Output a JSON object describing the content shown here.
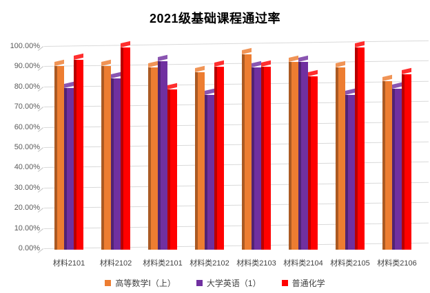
{
  "title": "2021级基础课程通过率",
  "chart_data": {
    "type": "bar",
    "style": "3d-clustered-column",
    "title": "2021级基础课程通过率",
    "categories": [
      "材料2101",
      "材料2102",
      "材料类2101",
      "材料类2102",
      "材料类2103",
      "材料类2104",
      "材料类2105",
      "材料类2106"
    ],
    "series": [
      {
        "name": "高等数学Ⅰ（上）",
        "color": "#ED7D31",
        "values": [
          90.9,
          90.9,
          90.0,
          87.9,
          96.7,
          92.9,
          90.0,
          83.3
        ]
      },
      {
        "name": "大学英语（1）",
        "color": "#7030A0",
        "values": [
          80.0,
          84.8,
          93.3,
          76.7,
          90.0,
          92.9,
          76.7,
          79.5
        ]
      },
      {
        "name": "普通化学",
        "color": "#FF0000",
        "values": [
          93.9,
          100.0,
          79.3,
          90.6,
          90.6,
          85.7,
          100.0,
          86.7
        ]
      }
    ],
    "xlabel": "",
    "ylabel": "",
    "ylim": [
      0,
      100
    ],
    "ytick_labels": [
      "0.00%",
      "10.00%",
      "20.00%",
      "30.00%",
      "40.00%",
      "50.00%",
      "60.00%",
      "70.00%",
      "80.00%",
      "90.00%",
      "100.00%"
    ],
    "grid": true,
    "gridline_color": "#D9D9D9",
    "axis_label_color": "#595959",
    "legend_position": "bottom",
    "background_color": "#FFFFFF"
  }
}
